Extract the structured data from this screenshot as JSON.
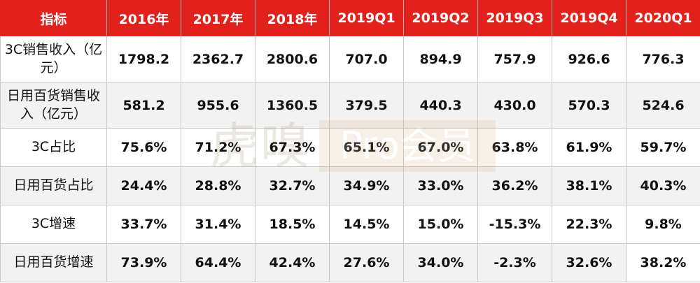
{
  "table": {
    "headers": [
      "指标",
      "2016年",
      "2017年",
      "2018年",
      "2019Q1",
      "2019Q2",
      "2019Q3",
      "2019Q4",
      "2020Q1"
    ],
    "rows": [
      {
        "label": "3C销售收入（亿元）",
        "values": [
          "1798.2",
          "2362.7",
          "2800.6",
          "707.0",
          "894.9",
          "757.9",
          "926.6",
          "776.3"
        ]
      },
      {
        "label": "日用百货销售收入（亿元）",
        "values": [
          "581.2",
          "955.6",
          "1360.5",
          "379.5",
          "440.3",
          "430.0",
          "570.3",
          "524.6"
        ]
      },
      {
        "label": "3C占比",
        "values": [
          "75.6%",
          "71.2%",
          "67.3%",
          "65.1%",
          "67.0%",
          "63.8%",
          "61.9%",
          "59.7%"
        ]
      },
      {
        "label": "日用百货占比",
        "values": [
          "24.4%",
          "28.8%",
          "32.7%",
          "34.9%",
          "33.0%",
          "36.2%",
          "38.1%",
          "40.3%"
        ]
      },
      {
        "label": "3C增速",
        "values": [
          "33.7%",
          "31.4%",
          "18.5%",
          "14.5%",
          "15.0%",
          "-15.3%",
          "22.3%",
          "9.8%"
        ]
      },
      {
        "label": "日用百货增速",
        "values": [
          "73.9%",
          "64.4%",
          "42.4%",
          "27.6%",
          "34.0%",
          "-2.3%",
          "32.6%",
          "38.2%"
        ]
      }
    ]
  },
  "watermark": {
    "text": "虎嗅",
    "badge": "Pro会员"
  },
  "colors": {
    "header_bg": "#e3211c",
    "header_text": "#ffffff",
    "alt_row_bg": "#f2f2f2"
  }
}
